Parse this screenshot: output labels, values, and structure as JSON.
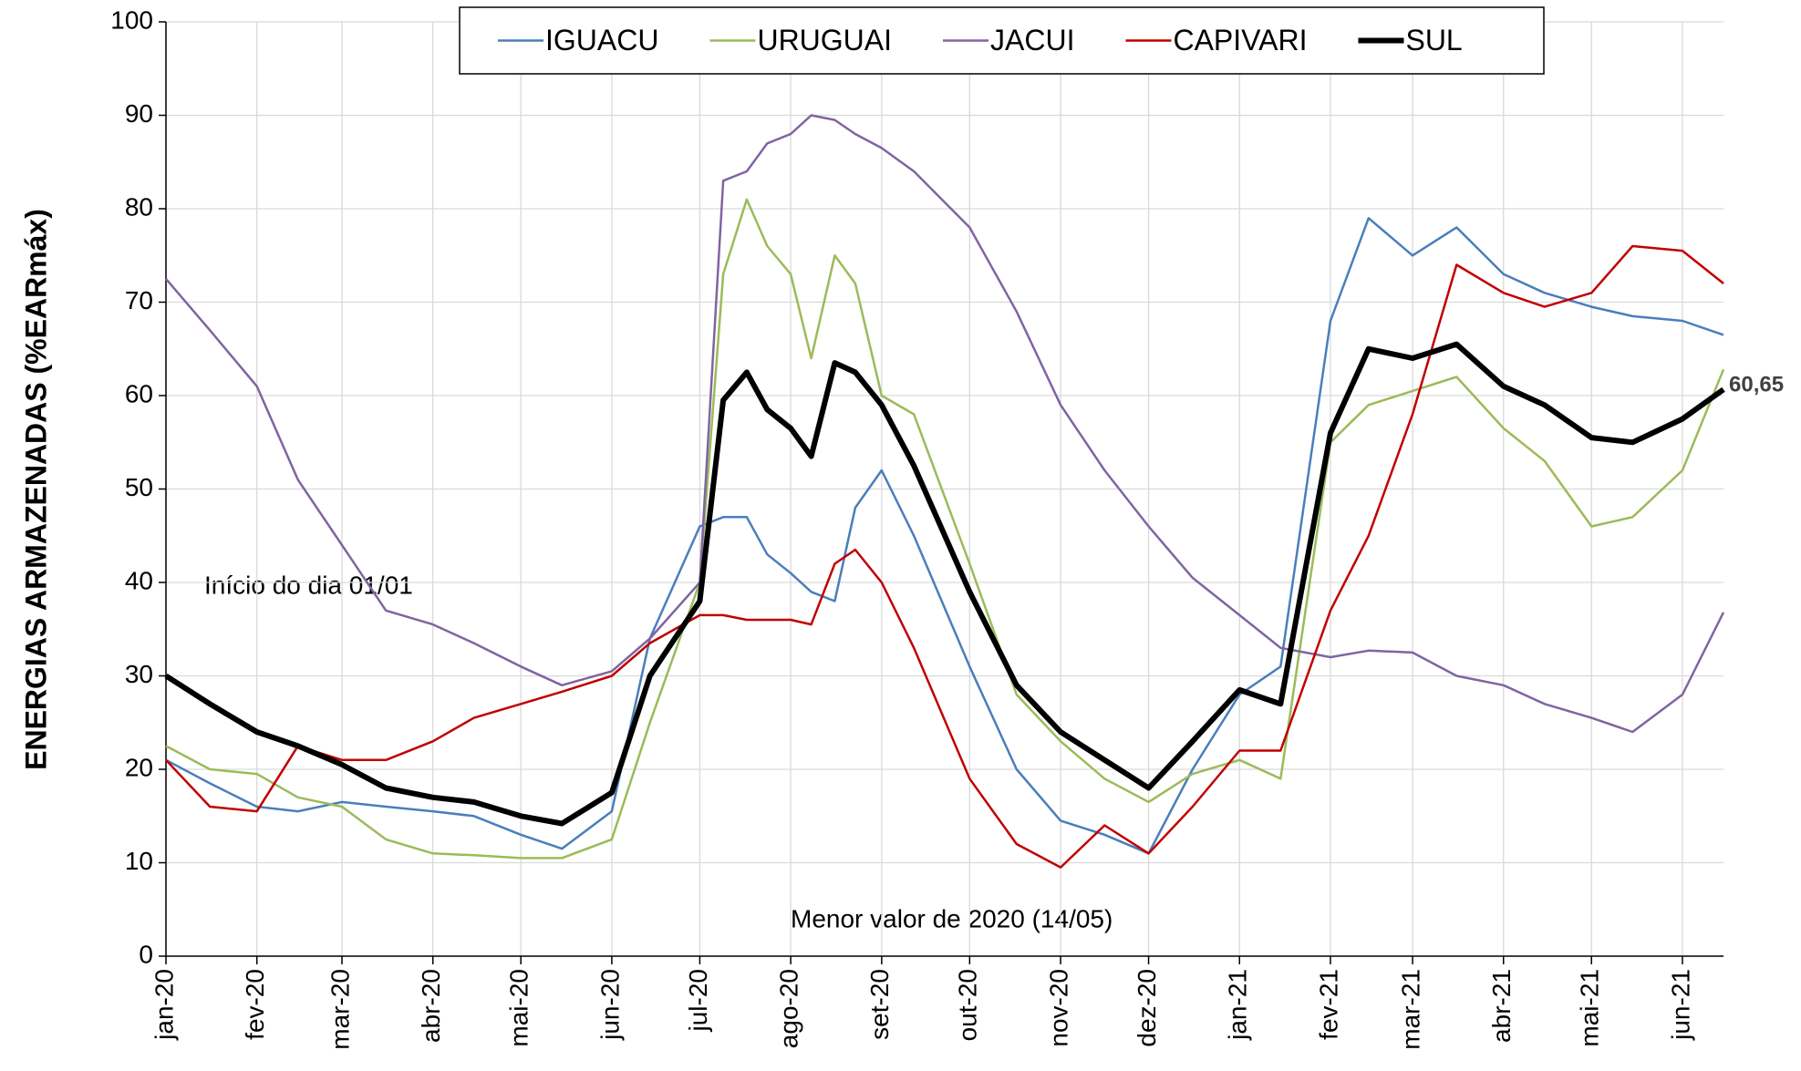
{
  "chart_data": {
    "type": "line",
    "y_label": "ENERGIAS ARMAZENADAS (%EARmáx)",
    "annotations": [
      "Início do dia 01/01",
      "Menor valor de 2020 (14/05)"
    ],
    "x": [
      0,
      15,
      31,
      45,
      60,
      75,
      91,
      105,
      121,
      135,
      152,
      165,
      182,
      190,
      198,
      205,
      213,
      220,
      228,
      235,
      244,
      255,
      274,
      290,
      305,
      320,
      335,
      350,
      366,
      380,
      397,
      410,
      425,
      440,
      456,
      470,
      486,
      500,
      517,
      531
    ],
    "xlim": [
      0,
      531
    ],
    "xticks": [
      {
        "value": 0,
        "label": "jan-20"
      },
      {
        "value": 31,
        "label": "fev-20"
      },
      {
        "value": 60,
        "label": "mar-20"
      },
      {
        "value": 91,
        "label": "abr-20"
      },
      {
        "value": 121,
        "label": "mai-20"
      },
      {
        "value": 152,
        "label": "jun-20"
      },
      {
        "value": 182,
        "label": "jul-20"
      },
      {
        "value": 213,
        "label": "ago-20"
      },
      {
        "value": 244,
        "label": "set-20"
      },
      {
        "value": 274,
        "label": "out-20"
      },
      {
        "value": 305,
        "label": "nov-20"
      },
      {
        "value": 335,
        "label": "dez-20"
      },
      {
        "value": 366,
        "label": "jan-21"
      },
      {
        "value": 397,
        "label": "fev-21"
      },
      {
        "value": 425,
        "label": "mar-21"
      },
      {
        "value": 456,
        "label": "abr-21"
      },
      {
        "value": 486,
        "label": "mai-21"
      },
      {
        "value": 517,
        "label": "jun-21"
      }
    ],
    "ylim": [
      0,
      100
    ],
    "yticks": [
      0,
      10,
      20,
      30,
      40,
      50,
      60,
      70,
      80,
      90,
      100
    ],
    "grid": true,
    "legend": "top",
    "series": [
      {
        "name": "IGUACU",
        "color": "#4a7ebb",
        "width": 2.5,
        "values": [
          21,
          18.5,
          16,
          15.5,
          16.5,
          16,
          15.5,
          15,
          13,
          11.5,
          15.5,
          34,
          46,
          47,
          47,
          43,
          41,
          39,
          38,
          48,
          52,
          45,
          31,
          20,
          14.5,
          13,
          11,
          20,
          28,
          31,
          68,
          79,
          75,
          78,
          73,
          71,
          69.5,
          68.5,
          68,
          66.5
        ]
      },
      {
        "name": "URUGUAI",
        "color": "#9bbb59",
        "width": 2.5,
        "values": [
          22.5,
          20,
          19.5,
          17,
          16,
          12.5,
          11,
          10.8,
          10.5,
          10.5,
          12.5,
          25,
          40,
          73,
          81,
          76,
          73,
          64,
          75,
          72,
          60,
          58,
          42,
          28,
          23,
          19,
          16.5,
          19.5,
          21,
          19,
          55,
          59,
          60.5,
          62,
          56.5,
          53,
          46,
          47,
          52,
          62.8
        ]
      },
      {
        "name": "JACUI",
        "color": "#8064a2",
        "width": 2.5,
        "values": [
          72.5,
          67,
          61,
          51,
          44,
          37,
          35.5,
          33.5,
          31,
          29,
          30.5,
          34,
          40,
          83,
          84,
          87,
          88,
          90,
          89.5,
          88,
          86.5,
          84,
          78,
          69,
          59,
          52,
          46,
          40.5,
          36.5,
          33,
          32,
          32.7,
          32.5,
          30,
          29,
          27,
          25.5,
          24,
          28,
          36.8
        ]
      },
      {
        "name": "CAPIVARI",
        "color": "#c00000",
        "width": 2.5,
        "values": [
          21,
          16,
          15.5,
          22.5,
          21,
          21,
          23,
          25.5,
          27,
          28.3,
          30,
          33.5,
          36.5,
          36.5,
          36,
          36,
          36,
          35.5,
          42,
          43.5,
          40,
          33,
          19,
          12,
          9.5,
          14,
          11,
          16,
          22,
          22,
          37,
          45,
          58,
          74,
          71,
          69.5,
          71,
          76,
          75.5,
          72
        ]
      },
      {
        "name": "SUL",
        "color": "#000000",
        "width": 6,
        "values": [
          30,
          27,
          24,
          22.5,
          20.5,
          18,
          17,
          16.5,
          15,
          14.2,
          17.5,
          30,
          38,
          59.5,
          62.5,
          58.5,
          56.5,
          53.5,
          63.5,
          62.5,
          59,
          52.5,
          39,
          29,
          24,
          21,
          18,
          23,
          28.5,
          27,
          56,
          65,
          64,
          65.5,
          61,
          59,
          55.5,
          55,
          57.5,
          60.65
        ],
        "value_labels": [
          null,
          null,
          null,
          null,
          null,
          null,
          null,
          null,
          null,
          null,
          null,
          null,
          null,
          null,
          null,
          null,
          null,
          null,
          null,
          null,
          null,
          null,
          null,
          null,
          null,
          null,
          null,
          null,
          null,
          null,
          null,
          null,
          null,
          null,
          null,
          null,
          null,
          null,
          null,
          "60,65"
        ]
      }
    ]
  }
}
